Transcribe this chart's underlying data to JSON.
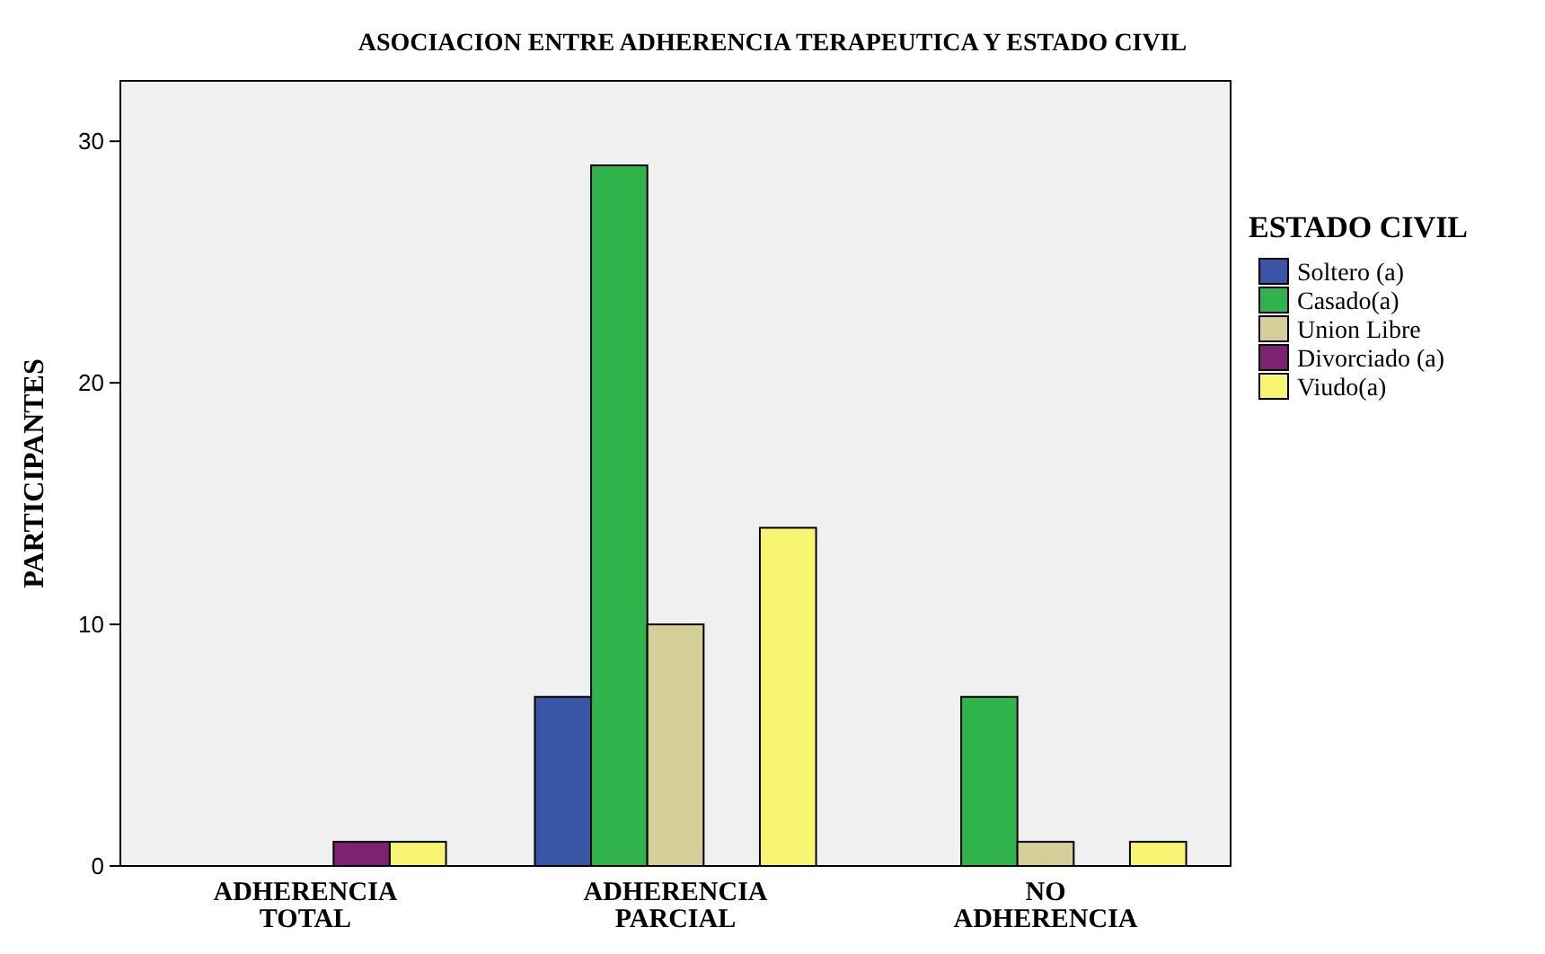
{
  "chart_data": {
    "type": "bar",
    "title": "ASOCIACION ENTRE ADHERENCIA TERAPEUTICA Y ESTADO CIVIL",
    "ylabel": "PARTICIPANTES",
    "legend_title": "ESTADO CIVIL",
    "categories": [
      "ADHERENCIA TOTAL",
      "ADHERENCIA PARCIAL",
      "NO ADHERENCIA"
    ],
    "series": [
      {
        "name": "Soltero (a)",
        "color": "#3a55a5",
        "values": [
          0,
          7,
          0
        ]
      },
      {
        "name": "Casado(a)",
        "color": "#2fb34a",
        "values": [
          0,
          29,
          7
        ]
      },
      {
        "name": "Union Libre",
        "color": "#d5ce99",
        "values": [
          0,
          10,
          1
        ]
      },
      {
        "name": "Divorciado (a)",
        "color": "#7c2271",
        "values": [
          1,
          0,
          0
        ]
      },
      {
        "name": "Viudo(a)",
        "color": "#f7f571",
        "values": [
          1,
          14,
          1
        ]
      }
    ],
    "ylim": [
      0,
      32.5
    ],
    "yticks": [
      0,
      10,
      20,
      30
    ],
    "grid": false,
    "legend": "right"
  }
}
